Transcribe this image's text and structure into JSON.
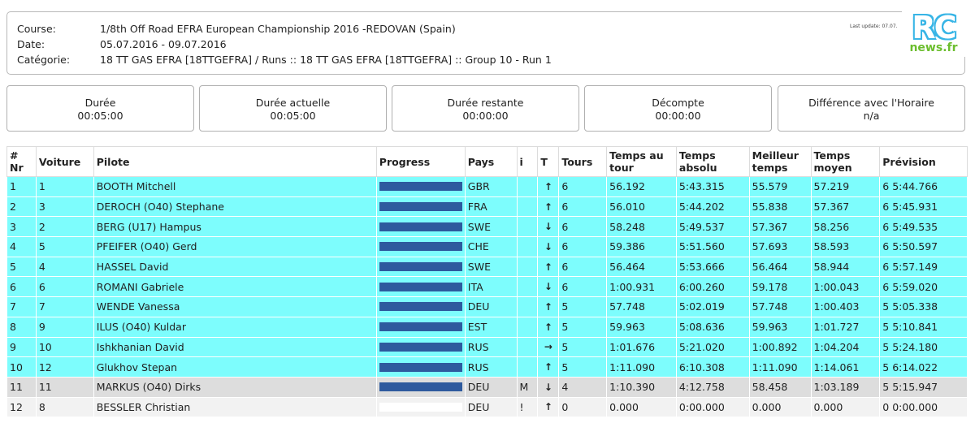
{
  "header": {
    "course_label": "Course:",
    "course_value": "1/8th Off Road EFRA European Championship 2016 -REDOVAN (Spain)",
    "date_label": "Date:",
    "date_value": "05.07.2016 - 09.07.2016",
    "category_label": "Catégorie:",
    "category_value": "18 TT GAS EFRA [18TTGEFRA] / Runs :: 18 TT GAS EFRA [18TTGEFRA] :: Group 10 - Run 1",
    "last_update": "Last update: 07.07.",
    "last_update_suffix": "078"
  },
  "logo": {
    "rc": "RC",
    "news": "news.fr"
  },
  "timers": [
    {
      "label": "Durée",
      "value": "00:05:00"
    },
    {
      "label": "Durée actuelle",
      "value": "00:05:00"
    },
    {
      "label": "Durée restante",
      "value": "00:00:00"
    },
    {
      "label": "Décompte",
      "value": "00:00:00"
    },
    {
      "label": "Différence avec l'Horaire",
      "value": "n/a"
    }
  ],
  "table": {
    "headers": [
      "# Nr",
      "Voiture",
      "Pilote",
      "Progress",
      "Pays",
      "i",
      "T",
      "Tours",
      "Temps au tour",
      "Temps absolu",
      "Meilleur temps",
      "Temps moyen",
      "Prévision"
    ],
    "rows": [
      {
        "pos": "1",
        "car": "1",
        "pilot": "BOOTH Mitchell",
        "progress": 1.0,
        "country": "GBR",
        "i": "",
        "t": "↑",
        "laps": "6",
        "lap": "56.192",
        "abs": "5:43.315",
        "best": "55.579",
        "avg": "57.219",
        "fc": "6 5:44.766",
        "style": "cyan"
      },
      {
        "pos": "2",
        "car": "3",
        "pilot": "DEROCH (O40) Stephane",
        "progress": 1.0,
        "country": "FRA",
        "i": "",
        "t": "↑",
        "laps": "6",
        "lap": "56.010",
        "abs": "5:44.202",
        "best": "55.838",
        "avg": "57.367",
        "fc": "6 5:45.931",
        "style": "cyan"
      },
      {
        "pos": "3",
        "car": "2",
        "pilot": "BERG (U17) Hampus",
        "progress": 1.0,
        "country": "SWE",
        "i": "",
        "t": "↓",
        "laps": "6",
        "lap": "58.248",
        "abs": "5:49.537",
        "best": "57.367",
        "avg": "58.256",
        "fc": "6 5:49.535",
        "style": "cyan"
      },
      {
        "pos": "4",
        "car": "5",
        "pilot": "PFEIFER (O40) Gerd",
        "progress": 1.0,
        "country": "CHE",
        "i": "",
        "t": "↓",
        "laps": "6",
        "lap": "59.386",
        "abs": "5:51.560",
        "best": "57.693",
        "avg": "58.593",
        "fc": "6 5:50.597",
        "style": "cyan"
      },
      {
        "pos": "5",
        "car": "4",
        "pilot": "HASSEL David",
        "progress": 1.0,
        "country": "SWE",
        "i": "",
        "t": "↑",
        "laps": "6",
        "lap": "56.464",
        "abs": "5:53.666",
        "best": "56.464",
        "avg": "58.944",
        "fc": "6 5:57.149",
        "style": "cyan"
      },
      {
        "pos": "6",
        "car": "6",
        "pilot": "ROMANI Gabriele",
        "progress": 1.0,
        "country": "ITA",
        "i": "",
        "t": "↓",
        "laps": "6",
        "lap": "1:00.931",
        "abs": "6:00.260",
        "best": "59.178",
        "avg": "1:00.043",
        "fc": "6 5:59.020",
        "style": "cyan"
      },
      {
        "pos": "7",
        "car": "7",
        "pilot": "WENDE Vanessa",
        "progress": 1.0,
        "country": "DEU",
        "i": "",
        "t": "↑",
        "laps": "5",
        "lap": "57.748",
        "abs": "5:02.019",
        "best": "57.748",
        "avg": "1:00.403",
        "fc": "5 5:05.338",
        "style": "cyan"
      },
      {
        "pos": "8",
        "car": "9",
        "pilot": "ILUS (O40) Kuldar",
        "progress": 1.0,
        "country": "EST",
        "i": "",
        "t": "↑",
        "laps": "5",
        "lap": "59.963",
        "abs": "5:08.636",
        "best": "59.963",
        "avg": "1:01.727",
        "fc": "5 5:10.841",
        "style": "cyan"
      },
      {
        "pos": "9",
        "car": "10",
        "pilot": "Ishkhanian David",
        "progress": 1.0,
        "country": "RUS",
        "i": "",
        "t": "→",
        "laps": "5",
        "lap": "1:01.676",
        "abs": "5:21.020",
        "best": "1:00.892",
        "avg": "1:04.204",
        "fc": "5 5:24.180",
        "style": "cyan"
      },
      {
        "pos": "10",
        "car": "12",
        "pilot": "Glukhov Stepan",
        "progress": 1.0,
        "country": "RUS",
        "i": "",
        "t": "↑",
        "laps": "5",
        "lap": "1:11.090",
        "abs": "6:10.308",
        "best": "1:11.090",
        "avg": "1:14.061",
        "fc": "5 6:14.022",
        "style": "cyan"
      },
      {
        "pos": "11",
        "car": "11",
        "pilot": "MARKUS (O40) Dirks",
        "progress": 1.0,
        "country": "DEU",
        "i": "M",
        "t": "↓",
        "laps": "4",
        "lap": "1:10.390",
        "abs": "4:12.758",
        "best": "58.458",
        "avg": "1:03.189",
        "fc": "5 5:15.947",
        "style": "gray"
      },
      {
        "pos": "12",
        "car": "8",
        "pilot": "BESSLER Christian",
        "progress": 0.0,
        "country": "DEU",
        "i": "!",
        "t": "↑",
        "laps": "0",
        "lap": "0.000",
        "abs": "0:00.000",
        "best": "0.000",
        "avg": "0.000",
        "fc": "0 0:00.000",
        "style": "light"
      }
    ]
  }
}
